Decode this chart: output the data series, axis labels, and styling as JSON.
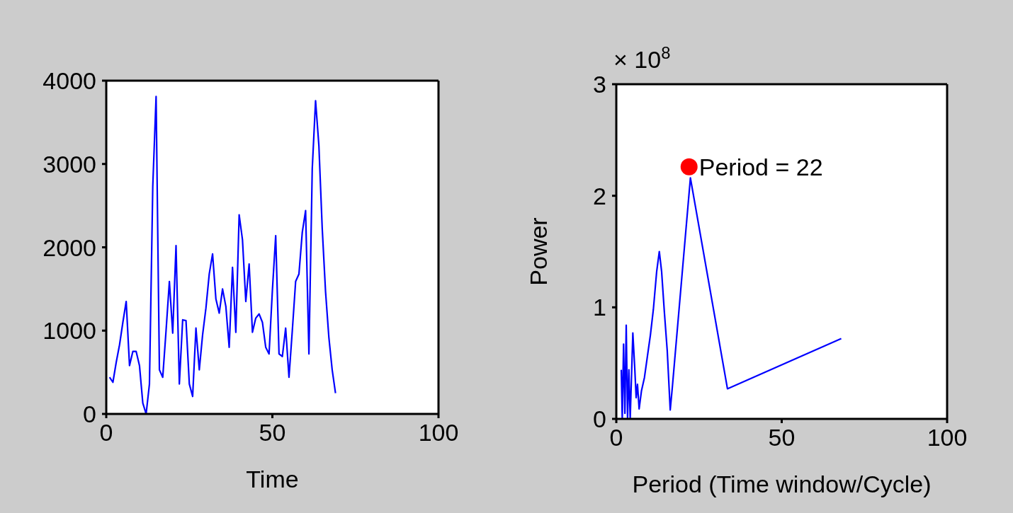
{
  "chart_data": [
    {
      "type": "line",
      "xlabel": "Time",
      "color": "#0000ff",
      "x": [
        1,
        2,
        3,
        4,
        5,
        6,
        7,
        8,
        9,
        10,
        11,
        12,
        13,
        14,
        15,
        16,
        17,
        18,
        19,
        20,
        21,
        22,
        23,
        24,
        25,
        26,
        27,
        28,
        29,
        30,
        31,
        32,
        33,
        34,
        35,
        36,
        37,
        38,
        39,
        40,
        41,
        42,
        43,
        44,
        45,
        46,
        47,
        48,
        49,
        50,
        51,
        52,
        53,
        54,
        55,
        56,
        57,
        58,
        59,
        60,
        61,
        62,
        63,
        64,
        65,
        66,
        67,
        68,
        69
      ],
      "values": [
        440,
        380,
        620,
        830,
        1100,
        1350,
        580,
        750,
        750,
        580,
        130,
        0,
        360,
        2730,
        3810,
        530,
        440,
        1000,
        1590,
        970,
        2020,
        360,
        1130,
        1120,
        360,
        210,
        1030,
        530,
        950,
        1270,
        1680,
        1920,
        1380,
        1210,
        1500,
        1290,
        800,
        1760,
        980,
        2390,
        2090,
        1350,
        1800,
        980,
        1150,
        1200,
        1100,
        800,
        720,
        1480,
        2140,
        720,
        690,
        1030,
        440,
        1000,
        1590,
        1680,
        2180,
        2440,
        720,
        2940,
        3760,
        3220,
        2230,
        1470,
        920,
        530,
        250
      ],
      "xlim": [
        0,
        100
      ],
      "xticks": [
        0,
        50,
        100
      ],
      "ylim": [
        0,
        4000
      ],
      "yticks": [
        0,
        1000,
        2000,
        3000,
        4000
      ],
      "grid": false
    },
    {
      "type": "line",
      "xlabel": "Period (Time window/Cycle)",
      "ylabel": "Power",
      "series": [
        {
          "color": "#0000ff",
          "x": [
            1.5,
            1.8,
            2.2,
            2.6,
            3.0,
            3.4,
            3.8,
            4.2,
            5.0,
            5.6,
            6.0,
            6.4,
            6.9,
            7.6,
            8.5,
            9.4,
            10.3,
            11.2,
            12.2,
            13.0,
            13.7,
            14.5,
            15.4,
            16.3,
            16.9,
            22.4,
            33.6,
            68
          ],
          "values": [
            0.44,
            0,
            0.67,
            0.05,
            0.84,
            0,
            0.44,
            0,
            0.77,
            0.44,
            0.19,
            0.31,
            0.09,
            0.25,
            0.37,
            0.56,
            0.75,
            0.98,
            1.32,
            1.5,
            1.32,
            0.97,
            0.61,
            0.08,
            0.27,
            2.16,
            0.27,
            0.72
          ]
        },
        {
          "type": "scatter",
          "color": "#ff0000",
          "marker": "circle",
          "x": [
            22
          ],
          "values": [
            2.26
          ]
        }
      ],
      "annotations": [
        "× 10$^{8}$",
        {
          "text": "Period = 22",
          "x": 22,
          "y": 2.26
        }
      ],
      "xlim": [
        0,
        100
      ],
      "xticks": [
        0,
        50,
        100
      ],
      "ylim": [
        0,
        3
      ],
      "yticks": [
        0,
        1,
        2,
        3
      ],
      "grid": false
    }
  ]
}
